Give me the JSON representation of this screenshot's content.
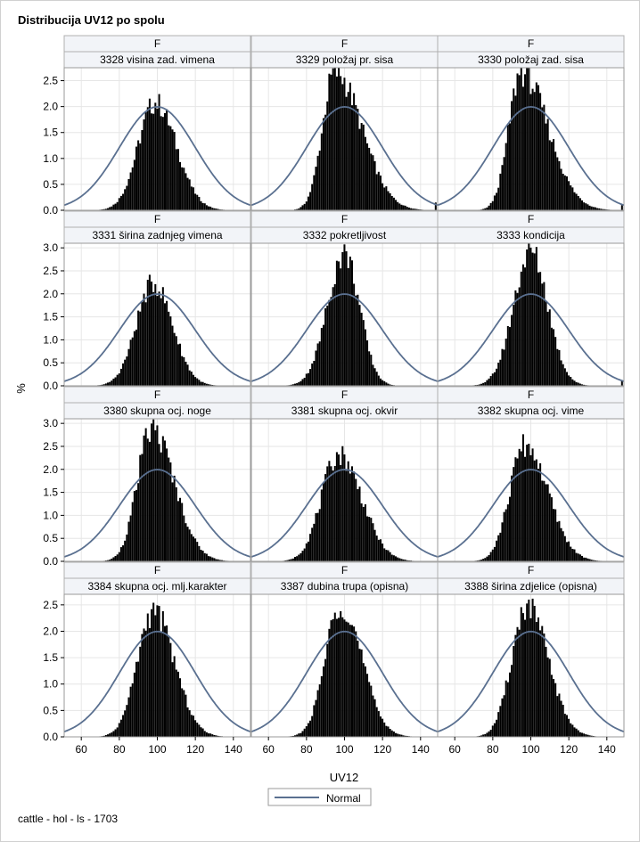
{
  "title": "Distribucija UV12 po spolu",
  "footnote": "cattle - hol - ls - 1703",
  "chart_data": {
    "type": "bar",
    "subtype": "histogram panel grid with normal density overlay",
    "row_header": "F",
    "xlabel": "UV12",
    "ylabel": "%",
    "xlim": [
      51,
      149
    ],
    "xticks": [
      60,
      80,
      100,
      120,
      140
    ],
    "legend": {
      "position": "bottom-center",
      "entries": [
        "Normal"
      ]
    },
    "colors": {
      "bars": "#000000",
      "normal_curve": "#5a7090",
      "panel_border": "#9a9a9a",
      "grid": "#e6e6e6",
      "header_bg": "#f2f4f8"
    },
    "normal_curve": {
      "mean": 100,
      "sd": 20
    },
    "grid": true,
    "rows": [
      {
        "ylim": [
          0,
          2.75
        ],
        "yticks": [
          0.0,
          0.5,
          1.0,
          1.5,
          2.0,
          2.5
        ]
      },
      {
        "ylim": [
          0,
          3.1
        ],
        "yticks": [
          0.0,
          0.5,
          1.0,
          1.5,
          2.0,
          2.5,
          3.0
        ]
      },
      {
        "ylim": [
          0,
          3.1
        ],
        "yticks": [
          0.0,
          0.5,
          1.0,
          1.5,
          2.0,
          2.5,
          3.0
        ]
      },
      {
        "ylim": [
          0,
          2.7
        ],
        "yticks": [
          0.0,
          0.5,
          1.0,
          1.5,
          2.0,
          2.5
        ]
      }
    ],
    "panels": [
      {
        "label": "3328 visina zad. vimena",
        "peak_pct": 2.1,
        "mode": 99,
        "sd_left": 9,
        "sd_right": 11,
        "tail": 0
      },
      {
        "label": "3329 položaj pr. sisa",
        "peak_pct": 2.7,
        "mode": 95,
        "sd_left": 6.5,
        "sd_right": 14,
        "tail": 0.15
      },
      {
        "label": "3330 položaj zad. sisa",
        "peak_pct": 2.7,
        "mode": 95,
        "sd_left": 6.5,
        "sd_right": 14,
        "tail": 0.1
      },
      {
        "label": "3331 širina zadnjeg vimena",
        "peak_pct": 2.25,
        "mode": 98,
        "sd_left": 9,
        "sd_right": 10,
        "tail": 0
      },
      {
        "label": "3332 pokretljivost",
        "peak_pct": 2.9,
        "mode": 100,
        "sd_left": 9,
        "sd_right": 8,
        "tail": 0
      },
      {
        "label": "3333 kondicija",
        "peak_pct": 2.95,
        "mode": 100,
        "sd_left": 9,
        "sd_right": 9,
        "tail": 0.12
      },
      {
        "label": "3380 skupna ocj. noge",
        "peak_pct": 2.9,
        "mode": 97,
        "sd_left": 7.5,
        "sd_right": 12,
        "tail": 0
      },
      {
        "label": "3381 skupna ocj. okvir",
        "peak_pct": 2.35,
        "mode": 97,
        "sd_left": 9,
        "sd_right": 12,
        "tail": 0
      },
      {
        "label": "3382 skupna ocj. vime",
        "peak_pct": 2.55,
        "mode": 97,
        "sd_left": 8,
        "sd_right": 12,
        "tail": 0
      },
      {
        "label": "3384 skupna ocj. mlj.karakter",
        "peak_pct": 2.4,
        "mode": 98,
        "sd_left": 8.5,
        "sd_right": 11,
        "tail": 0
      },
      {
        "label": "3387 dubina trupa (opisna)",
        "peak_pct": 2.55,
        "mode": 98,
        "sd_left": 8,
        "sd_right": 11,
        "tail": 0
      },
      {
        "label": "3388 širina zdjelice (opisna)",
        "peak_pct": 2.5,
        "mode": 98,
        "sd_left": 8,
        "sd_right": 11,
        "tail": 0
      }
    ]
  }
}
